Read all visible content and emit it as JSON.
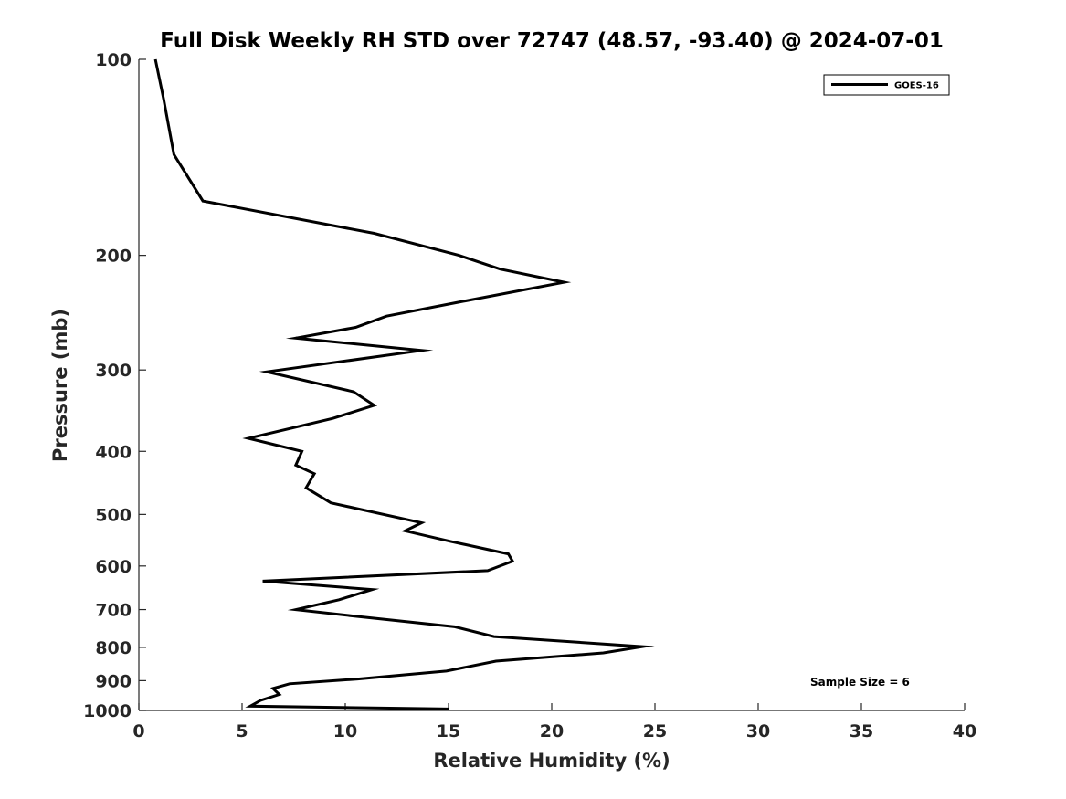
{
  "chart_data": {
    "type": "line",
    "title": "Full Disk Weekly RH STD over 72747 (48.57, -93.40) @ 2024-07-01",
    "xlabel": "Relative Humidity (%)",
    "ylabel": "Pressure (mb)",
    "xlim": [
      0,
      40
    ],
    "ylim": [
      100,
      1000
    ],
    "yscale": "log",
    "y_reversed": true,
    "x_ticks": [
      0,
      5,
      10,
      15,
      20,
      25,
      30,
      35,
      40
    ],
    "x_tick_labels": [
      "0",
      "5",
      "10",
      "15",
      "20",
      "25",
      "30",
      "35",
      "40"
    ],
    "y_ticks": [
      100,
      200,
      300,
      400,
      500,
      600,
      700,
      800,
      900,
      1000
    ],
    "y_tick_labels": [
      "100",
      "200",
      "300",
      "400",
      "500",
      "600",
      "700",
      "800",
      "900",
      "1000"
    ],
    "grid": false,
    "legend_position": "top-right",
    "series": [
      {
        "name": "GOES-16",
        "color": "#000000",
        "x": [
          0.8,
          1.2,
          1.7,
          3.1,
          11.4,
          15.5,
          17.5,
          20.6,
          15.5,
          12.0,
          10.5,
          7.6,
          13.7,
          6.2,
          10.4,
          11.4,
          9.4,
          5.3,
          7.9,
          7.6,
          8.5,
          8.1,
          9.3,
          13.7,
          12.9,
          15.1,
          17.9,
          18.1,
          16.9,
          6.0,
          11.3,
          9.7,
          7.6,
          10.4,
          15.3,
          17.2,
          24.4,
          22.5,
          17.3,
          14.9,
          10.6,
          7.3,
          6.5,
          6.8,
          5.9,
          5.4,
          15.0
        ],
        "y": [
          100,
          115,
          140,
          165,
          185,
          200,
          210,
          220,
          236,
          248,
          258,
          268,
          280,
          302,
          324,
          340,
          356,
          382,
          400,
          420,
          433,
          455,
          480,
          515,
          530,
          550,
          575,
          590,
          610,
          633,
          652,
          676,
          700,
          716,
          744,
          770,
          798,
          816,
          840,
          870,
          895,
          910,
          925,
          945,
          965,
          985,
          995
        ]
      }
    ],
    "annotations": [
      "Sample Size = 6"
    ]
  }
}
